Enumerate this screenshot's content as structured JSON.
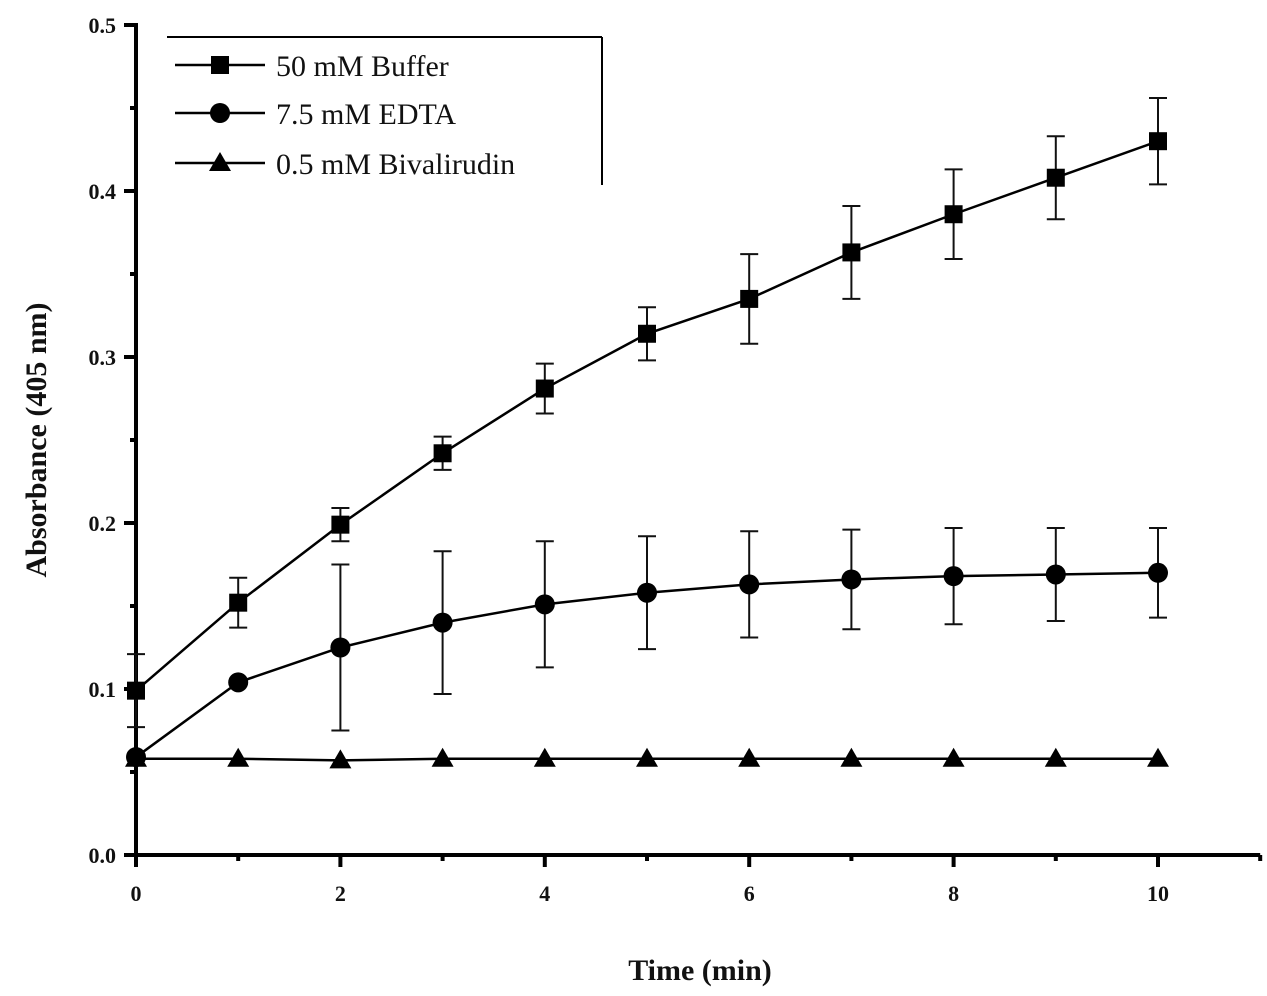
{
  "chart_data": {
    "type": "line",
    "title": "",
    "xlabel": "Time (min)",
    "ylabel": "Absorbance (405 nm)",
    "xlim": [
      0,
      11
    ],
    "ylim": [
      0,
      0.5
    ],
    "xticks": [
      0,
      2,
      4,
      6,
      8,
      10
    ],
    "xtick_labels": [
      "0",
      "2",
      "4",
      "6",
      "8",
      "10"
    ],
    "yticks": [
      0.0,
      0.1,
      0.2,
      0.3,
      0.4,
      0.5
    ],
    "ytick_labels": [
      "0.0",
      "0.1",
      "0.2",
      "0.3",
      "0.4",
      "0.5"
    ],
    "grid": false,
    "legend_position": "top-left",
    "x": [
      0,
      1,
      2,
      3,
      4,
      5,
      6,
      7,
      8,
      9,
      10
    ],
    "series": [
      {
        "name": "50 mM Buffer",
        "marker": "square",
        "color": "#000000",
        "values": [
          0.099,
          0.152,
          0.199,
          0.242,
          0.281,
          0.314,
          0.335,
          0.363,
          0.386,
          0.408,
          0.43
        ],
        "error": [
          0.022,
          0.015,
          0.01,
          0.01,
          0.015,
          0.016,
          0.027,
          0.028,
          0.027,
          0.025,
          0.026
        ]
      },
      {
        "name": "7.5 mM EDTA",
        "marker": "circle",
        "color": "#000000",
        "values": [
          0.059,
          0.104,
          0.125,
          0.14,
          0.151,
          0.158,
          0.163,
          0.166,
          0.168,
          0.169,
          0.17
        ],
        "error": [
          0.0,
          0.0,
          0.05,
          0.043,
          0.038,
          0.034,
          0.032,
          0.03,
          0.029,
          0.028,
          0.027
        ]
      },
      {
        "name": "0.5 mM Bivalirudin",
        "marker": "triangle",
        "color": "#000000",
        "values": [
          0.058,
          0.058,
          0.057,
          0.058,
          0.058,
          0.058,
          0.058,
          0.058,
          0.058,
          0.058,
          0.058
        ],
        "error": [
          0,
          0,
          0,
          0,
          0,
          0,
          0,
          0,
          0,
          0,
          0
        ]
      }
    ]
  }
}
